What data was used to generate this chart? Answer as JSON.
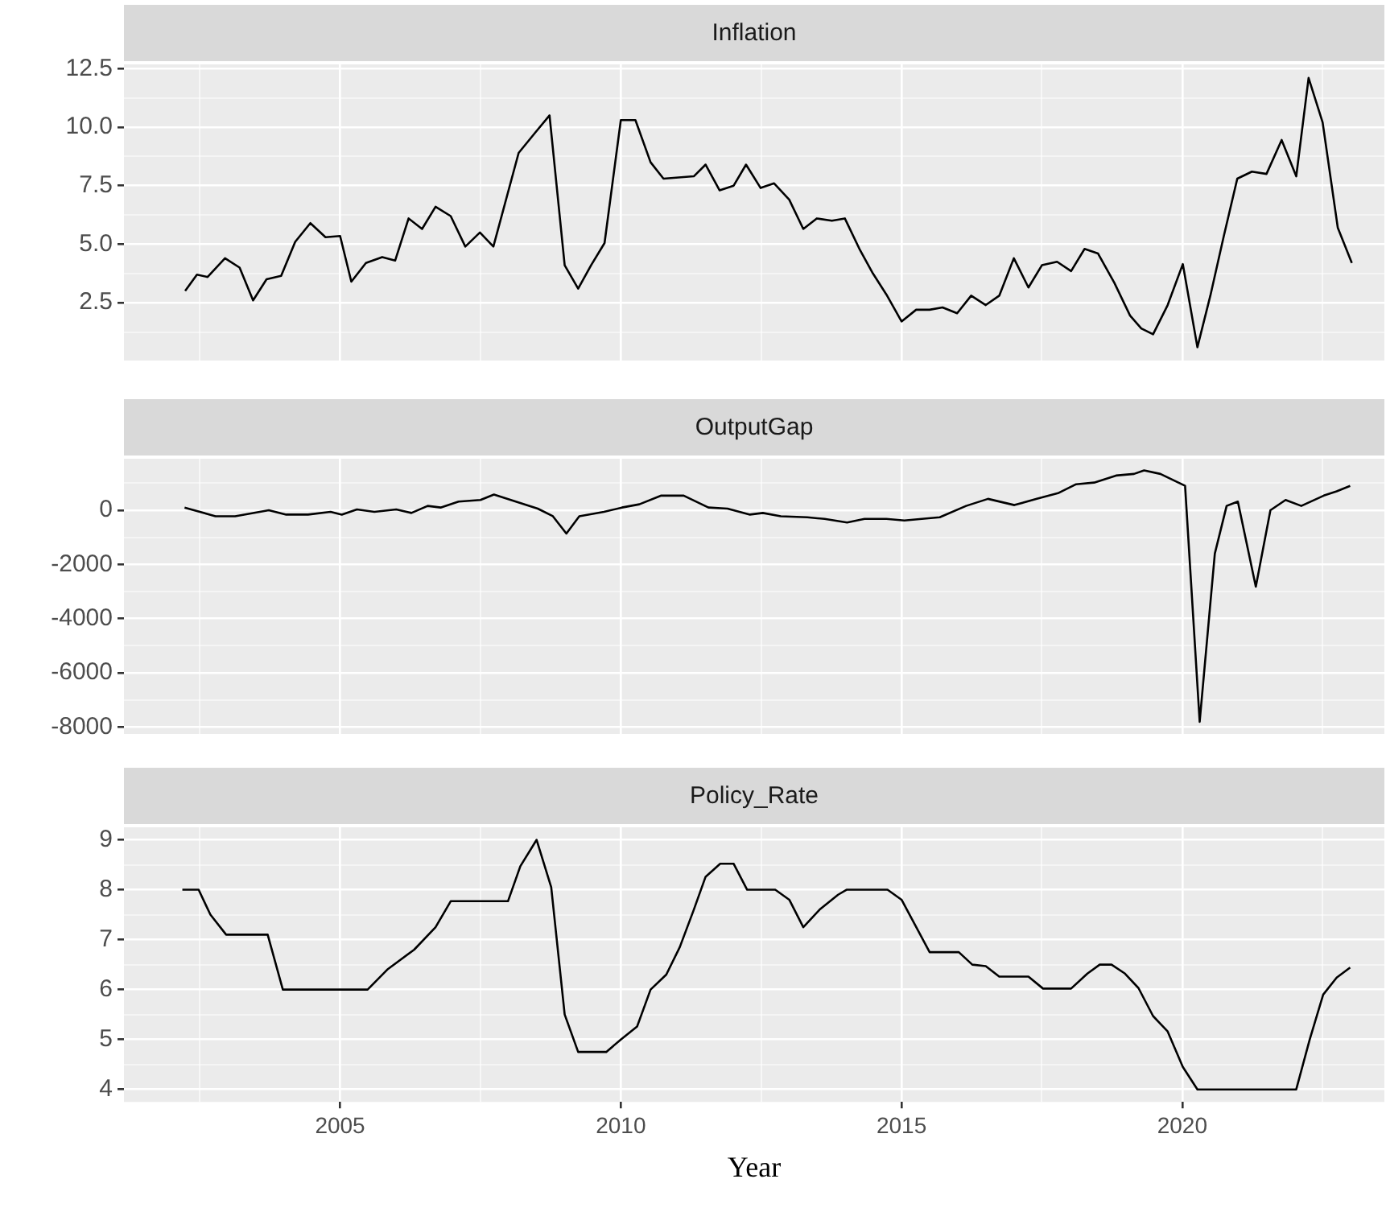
{
  "chart_data": [
    {
      "type": "line",
      "title": "Inflation",
      "xlim": [
        2001.15,
        2023.6
      ],
      "xticks": [
        {
          "value": 2002.5,
          "label": null
        },
        2005,
        {
          "value": 2007.5,
          "label": null
        },
        2010,
        {
          "value": 2012.5,
          "label": null
        },
        2015,
        {
          "value": 2017.5,
          "label": null
        },
        2020,
        {
          "value": 2022.5,
          "label": null
        }
      ],
      "ylim": [
        0.03,
        12.68
      ],
      "yticks": [
        {
          "value": 1.25,
          "label": null
        },
        2.5,
        {
          "value": 3.75,
          "label": null
        },
        {
          "value": 5,
          "label": "5.0"
        },
        {
          "value": 6.25,
          "label": null
        },
        7.5,
        {
          "value": 8.75,
          "label": null
        },
        {
          "value": 10,
          "label": "10.0"
        },
        {
          "value": 11.25,
          "label": null
        },
        12.5
      ],
      "grid": true,
      "tick_labels": "y",
      "series": [
        {
          "color": "#000000",
          "x": [
            2002.24,
            2002.45,
            2002.64,
            2002.95,
            2003.21,
            2003.45,
            2003.69,
            2003.95,
            2004.2,
            2004.47,
            2004.74,
            2005.0,
            2005.2,
            2005.46,
            2005.75,
            2005.98,
            2006.22,
            2006.46,
            2006.7,
            2006.97,
            2007.23,
            2007.49,
            2007.73,
            2008.18,
            2008.47,
            2008.73,
            2009.0,
            2009.24,
            2009.47,
            2009.71,
            2010.0,
            2010.26,
            2010.53,
            2010.76,
            2011.3,
            2011.51,
            2011.76,
            2012.01,
            2012.23,
            2012.49,
            2012.73,
            2013.0,
            2013.25,
            2013.49,
            2013.76,
            2013.99,
            2014.26,
            2014.49,
            2014.73,
            2015.0,
            2015.26,
            2015.5,
            2015.73,
            2015.99,
            2016.24,
            2016.5,
            2016.74,
            2017.0,
            2017.26,
            2017.5,
            2017.77,
            2018.02,
            2018.26,
            2018.5,
            2018.79,
            2019.07,
            2019.27,
            2019.48,
            2019.74,
            2020.01,
            2020.27,
            2020.5,
            2020.74,
            2020.98,
            2021.24,
            2021.5,
            2021.77,
            2022.03,
            2022.25,
            2022.5,
            2022.77,
            2023.02
          ],
          "values": [
            3.0,
            3.7,
            3.6,
            4.4,
            4.0,
            2.6,
            3.5,
            3.65,
            5.1,
            5.9,
            5.3,
            5.35,
            3.4,
            4.2,
            4.45,
            4.3,
            6.1,
            5.65,
            6.6,
            6.2,
            4.9,
            5.5,
            4.9,
            8.9,
            9.75,
            10.5,
            4.1,
            3.1,
            4.1,
            5.05,
            10.3,
            10.3,
            8.5,
            7.8,
            7.9,
            8.4,
            7.3,
            7.5,
            8.4,
            7.4,
            7.6,
            6.9,
            5.65,
            6.1,
            6.0,
            6.1,
            4.75,
            3.75,
            2.85,
            1.7,
            2.2,
            2.2,
            2.3,
            2.05,
            2.8,
            2.4,
            2.8,
            4.4,
            3.15,
            4.1,
            4.25,
            3.85,
            4.8,
            4.6,
            3.35,
            1.95,
            1.4,
            1.15,
            2.4,
            4.15,
            0.6,
            2.8,
            5.35,
            7.8,
            8.1,
            8.0,
            9.45,
            7.9,
            12.1,
            10.2,
            5.7,
            4.2
          ]
        }
      ]
    },
    {
      "type": "line",
      "title": "OutputGap",
      "xlim": [
        2001.15,
        2023.6
      ],
      "xticks": [
        {
          "value": 2002.5,
          "label": null
        },
        2005,
        {
          "value": 2007.5,
          "label": null
        },
        2010,
        {
          "value": 2012.5,
          "label": null
        },
        2015,
        {
          "value": 2017.5,
          "label": null
        },
        2020,
        {
          "value": 2022.5,
          "label": null
        }
      ],
      "ylim": [
        -8250,
        1900
      ],
      "yticks": [
        -8000,
        {
          "value": -7000,
          "label": null
        },
        -6000,
        {
          "value": -5000,
          "label": null
        },
        -4000,
        {
          "value": -3000,
          "label": null
        },
        -2000,
        {
          "value": -1000,
          "label": null
        },
        0,
        {
          "value": 1000,
          "label": null
        }
      ],
      "grid": true,
      "tick_labels": "y",
      "series": [
        {
          "color": "#000000",
          "x": [
            2002.23,
            2002.78,
            2003.13,
            2003.73,
            2004.04,
            2004.43,
            2004.83,
            2005.03,
            2005.3,
            2005.61,
            2006.0,
            2006.27,
            2006.56,
            2006.79,
            2007.11,
            2007.5,
            2007.74,
            2008.13,
            2008.52,
            2008.79,
            2009.03,
            2009.26,
            2009.7,
            2010.02,
            2010.33,
            2010.72,
            2011.12,
            2011.56,
            2011.9,
            2012.3,
            2012.53,
            2012.85,
            2013.32,
            2013.63,
            2014.03,
            2014.34,
            2014.73,
            2015.05,
            2015.36,
            2015.68,
            2016.15,
            2016.54,
            2017.01,
            2017.41,
            2017.8,
            2018.11,
            2018.43,
            2018.82,
            2019.14,
            2019.32,
            2019.61,
            2020.05,
            2020.31,
            2020.58,
            2020.79,
            2020.99,
            2021.31,
            2021.57,
            2021.84,
            2022.12,
            2022.52,
            2022.75,
            2022.99
          ],
          "values": [
            100,
            -220,
            -220,
            0,
            -160,
            -160,
            -60,
            -160,
            30,
            -60,
            30,
            -100,
            160,
            100,
            320,
            380,
            580,
            320,
            60,
            -220,
            -860,
            -220,
            -60,
            100,
            220,
            540,
            540,
            100,
            60,
            -160,
            -100,
            -220,
            -260,
            -320,
            -450,
            -320,
            -320,
            -380,
            -320,
            -260,
            160,
            420,
            190,
            420,
            640,
            960,
            1020,
            1280,
            1340,
            1470,
            1340,
            900,
            -7800,
            -1600,
            160,
            320,
            -2820,
            0,
            380,
            160,
            540,
            700,
            900
          ]
        }
      ]
    },
    {
      "type": "line",
      "title": "Policy_Rate",
      "xlabel": "Year",
      "xlim": [
        2001.15,
        2023.6
      ],
      "xticks": [
        {
          "value": 2002.5,
          "label": null
        },
        2005,
        {
          "value": 2007.5,
          "label": null
        },
        2010,
        {
          "value": 2012.5,
          "label": null
        },
        2015,
        {
          "value": 2017.5,
          "label": null
        },
        2020,
        {
          "value": 2022.5,
          "label": null
        }
      ],
      "ylim": [
        3.75,
        9.25
      ],
      "yticks": [
        4,
        {
          "value": 4.5,
          "label": null
        },
        5,
        {
          "value": 5.5,
          "label": null
        },
        6,
        {
          "value": 6.5,
          "label": null
        },
        7,
        {
          "value": 7.5,
          "label": null
        },
        8,
        {
          "value": 8.5,
          "label": null
        },
        9
      ],
      "grid": true,
      "series": [
        {
          "color": "#000000",
          "x": [
            2002.19,
            2002.48,
            2002.69,
            2002.97,
            2003.71,
            2003.98,
            2005.49,
            2005.84,
            2006.32,
            2006.7,
            2006.97,
            2007.99,
            2008.21,
            2008.5,
            2008.76,
            2009.0,
            2009.24,
            2009.74,
            2010.0,
            2010.29,
            2010.53,
            2010.81,
            2011.05,
            2011.3,
            2011.51,
            2011.77,
            2012.01,
            2012.25,
            2012.75,
            2013.0,
            2013.25,
            2013.54,
            2013.87,
            2014.02,
            2014.75,
            2015.0,
            2015.5,
            2016.02,
            2016.26,
            2016.5,
            2016.74,
            2017.26,
            2017.52,
            2018.02,
            2018.31,
            2018.53,
            2018.74,
            2018.98,
            2019.22,
            2019.48,
            2019.74,
            2020.01,
            2020.27,
            2022.03,
            2022.27,
            2022.51,
            2022.75,
            2022.99
          ],
          "values": [
            8.0,
            8.0,
            7.5,
            7.1,
            7.1,
            6.0,
            6.0,
            6.4,
            6.8,
            7.25,
            7.77,
            7.77,
            8.47,
            9.0,
            8.05,
            5.5,
            4.75,
            4.75,
            5.0,
            5.26,
            6.0,
            6.3,
            6.85,
            7.6,
            8.26,
            8.52,
            8.52,
            8.0,
            8.0,
            7.8,
            7.25,
            7.6,
            7.9,
            8.0,
            8.0,
            7.8,
            6.75,
            6.75,
            6.5,
            6.47,
            6.26,
            6.26,
            6.02,
            6.02,
            6.32,
            6.5,
            6.5,
            6.32,
            6.03,
            5.47,
            5.16,
            4.45,
            4.0,
            4.0,
            5.0,
            5.9,
            6.24,
            6.44
          ]
        }
      ]
    }
  ]
}
